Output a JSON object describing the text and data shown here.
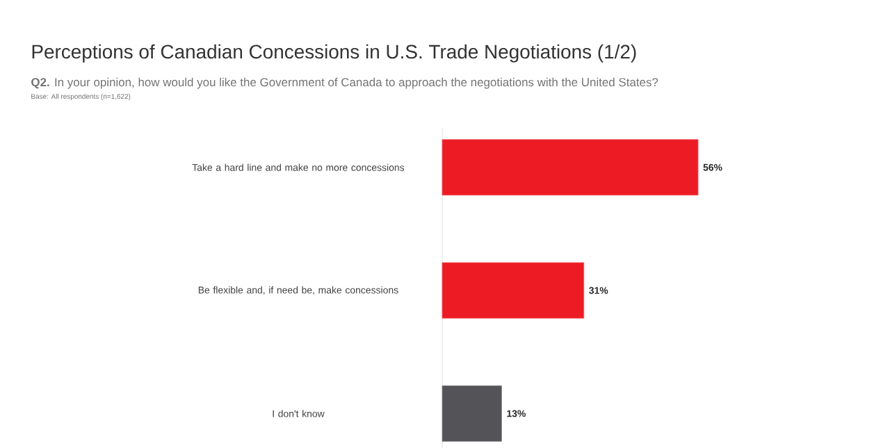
{
  "chart_data": {
    "type": "bar",
    "orientation": "horizontal",
    "title": "Perceptions of Canadian Concessions in U.S. Trade Negotiations (1/2)",
    "subtitle": "**Q2.** In your opinion, how would you like the Government of Canada to approach the negotiations with the United States?",
    "annotations": [
      "Base: All respondents (n=1,622)"
    ],
    "categories": [
      "Take a hard line and make no more concessions",
      "Be flexible and, if need be, make concessions",
      "I don't know"
    ],
    "values": [
      56,
      31,
      13
    ],
    "colors": [
      "#ed1c24",
      "#ed1c24",
      "#545358"
    ],
    "value_labels": [
      "56%",
      "31%",
      "13%"
    ]
  }
}
